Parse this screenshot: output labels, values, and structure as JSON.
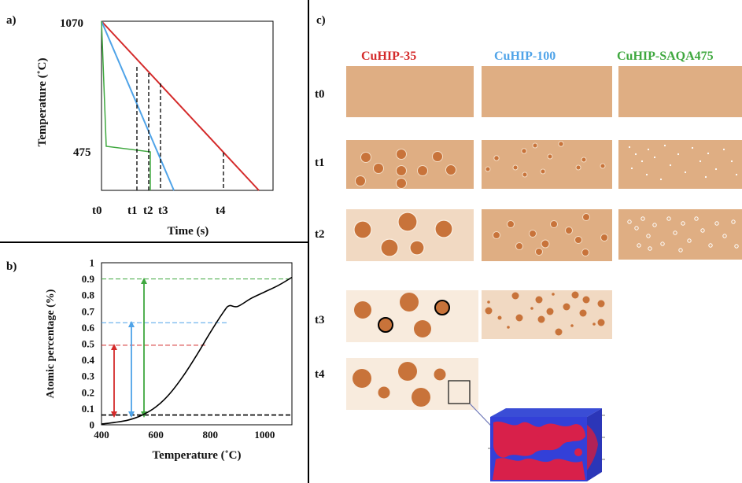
{
  "panel_a": {
    "label": "a)",
    "xlabel": "Time (s)",
    "ylabel": "Temperature (˚C)",
    "yticks": [
      "1070",
      "475"
    ],
    "time_labels": [
      "t0",
      "t1",
      "t2",
      "t3",
      "t4"
    ]
  },
  "panel_b": {
    "label": "b)",
    "xlabel": "Temperature (˚C)",
    "ylabel": "Atomic percentage (%)",
    "xticks": [
      "400",
      "600",
      "800",
      "1000"
    ],
    "yticks": [
      "0",
      "0.1",
      "0.2",
      "0.3",
      "0.4",
      "0.5",
      "0.6",
      "0.7",
      "0.8",
      "0.9",
      "1"
    ]
  },
  "panel_c": {
    "label": "c)",
    "row_labels": [
      "t0",
      "t1",
      "t2",
      "t3",
      "t4"
    ],
    "columns": [
      {
        "name": "CuHIP-35",
        "color": "#d42a2a"
      },
      {
        "name": "CuHIP-100",
        "color": "#4fa3e8"
      },
      {
        "name": "CuHIP-SAQA475",
        "color": "#3fa83f"
      }
    ]
  },
  "colors": {
    "red": "#d42a2a",
    "blue": "#4fa3e8",
    "green": "#3fa83f",
    "matrix": "#dfae83",
    "matrix_light": "#f1d9c2",
    "matrix_lighter": "#f8ebdd",
    "precipitate": "#c8733a"
  },
  "chart_data": [
    {
      "type": "line",
      "panel": "a",
      "xlabel": "Time (s)",
      "ylabel": "Temperature (˚C)",
      "series": [
        {
          "color": "#d42a2a",
          "x": [
            0,
            10
          ],
          "y": [
            1070,
            0
          ]
        },
        {
          "color": "#4fa3e8",
          "x": [
            0,
            4.6
          ],
          "y": [
            1070,
            0
          ]
        },
        {
          "color": "#3fa83f",
          "x": [
            0,
            0.28,
            3.1,
            3.1
          ],
          "y": [
            1070,
            510,
            475,
            0
          ]
        }
      ]
    },
    {
      "type": "line",
      "panel": "b",
      "xlabel": "Temperature (˚C)",
      "ylabel": "Atomic percentage (%)",
      "xlim": [
        400,
        1100
      ],
      "ylim": [
        0,
        1
      ],
      "series": [
        {
          "color": "#000000",
          "x": [
            400,
            450,
            500,
            550,
            600,
            650,
            700,
            750,
            800,
            850,
            870,
            900,
            950,
            1000,
            1050,
            1100
          ],
          "y": [
            0.005,
            0.015,
            0.03,
            0.06,
            0.11,
            0.19,
            0.3,
            0.43,
            0.57,
            0.7,
            0.735,
            0.73,
            0.78,
            0.82,
            0.86,
            0.91
          ]
        }
      ],
      "reference_levels": [
        {
          "color": "#000000",
          "y": 0.06
        },
        {
          "color": "#d42a2a",
          "y": 0.49
        },
        {
          "color": "#4fa3e8",
          "y": 0.63
        },
        {
          "color": "#3fa83f",
          "y": 0.9
        }
      ]
    }
  ]
}
